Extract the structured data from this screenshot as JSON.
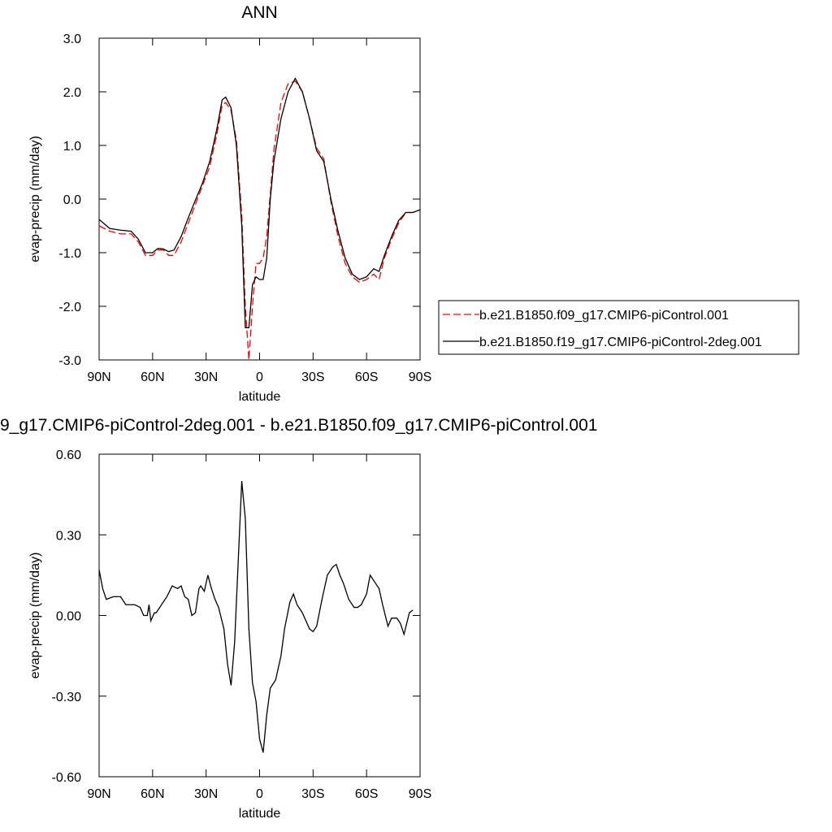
{
  "chart_data": [
    {
      "type": "line",
      "title": "ANN",
      "xlabel": "latitude",
      "ylabel": "evap-precip (mm/day)",
      "x": [
        90,
        84,
        78,
        72,
        68,
        64,
        60,
        57,
        54,
        51,
        48,
        44,
        40,
        36,
        32,
        28,
        24,
        21,
        19,
        16,
        13,
        10,
        8,
        6,
        4,
        2,
        0,
        -2,
        -4,
        -6,
        -8,
        -12,
        -16,
        -20,
        -24,
        -28,
        -32,
        -36,
        -40,
        -44,
        -48,
        -52,
        -56,
        -60,
        -64,
        -67,
        -70,
        -74,
        -78,
        -82,
        -86,
        -90
      ],
      "series": [
        {
          "name": "b.e21.B1850.f09_g17.CMIP6-piControl.001",
          "color": "#ff0000",
          "dashed": true,
          "values": [
            -0.5,
            -0.6,
            -0.65,
            -0.65,
            -0.8,
            -1.05,
            -1.05,
            -0.95,
            -0.95,
            -1.05,
            -1.05,
            -0.8,
            -0.45,
            -0.1,
            0.25,
            0.6,
            1.2,
            1.75,
            1.8,
            1.65,
            1.1,
            -0.3,
            -2.0,
            -3.0,
            -2.0,
            -1.2,
            -1.2,
            -1.1,
            -0.7,
            0.1,
            0.9,
            1.8,
            2.15,
            2.2,
            2.0,
            1.5,
            0.95,
            0.75,
            -0.05,
            -0.7,
            -1.2,
            -1.45,
            -1.55,
            -1.5,
            -1.4,
            -1.5,
            -1.1,
            -0.75,
            -0.45,
            -0.25,
            -0.25,
            -0.2
          ]
        },
        {
          "name": "b.e21.B1850.f19_g17.CMIP6-piControl-2deg.001",
          "color": "#000000",
          "dashed": false,
          "values": [
            -0.38,
            -0.55,
            -0.58,
            -0.6,
            -0.75,
            -1.0,
            -1.0,
            -0.92,
            -0.93,
            -0.98,
            -0.95,
            -0.7,
            -0.35,
            -0.02,
            0.3,
            0.7,
            1.3,
            1.85,
            1.9,
            1.7,
            1.0,
            -0.5,
            -2.4,
            -2.4,
            -1.6,
            -1.45,
            -1.5,
            -1.5,
            -1.1,
            0.0,
            0.7,
            1.5,
            2.0,
            2.25,
            2.0,
            1.5,
            0.9,
            0.7,
            0.0,
            -0.6,
            -1.1,
            -1.4,
            -1.5,
            -1.45,
            -1.3,
            -1.35,
            -1.05,
            -0.7,
            -0.4,
            -0.25,
            -0.25,
            -0.2
          ]
        }
      ],
      "xlim": [
        90,
        -90
      ],
      "xticks": [
        {
          "value": 90,
          "label": "90N"
        },
        {
          "value": 60,
          "label": "60N"
        },
        {
          "value": 30,
          "label": "30N"
        },
        0,
        {
          "value": -30,
          "label": "30S"
        },
        {
          "value": -60,
          "label": "60S"
        },
        {
          "value": -90,
          "label": "90S"
        }
      ],
      "ylim": [
        -3,
        3
      ],
      "yticks": [
        {
          "value": -3,
          "label": "-3.0"
        },
        {
          "value": -2,
          "label": "-2.0"
        },
        {
          "value": -1,
          "label": "-1.0"
        },
        {
          "value": 0,
          "label": "0.0"
        },
        {
          "value": 1,
          "label": "1.0"
        },
        {
          "value": 2,
          "label": "2.0"
        },
        {
          "value": 3,
          "label": "3.0"
        }
      ],
      "legend": "outside-right"
    },
    {
      "type": "line",
      "title": "9_g17.CMIP6-piControl-2deg.001 - b.e21.B1850.f09_g17.CMIP6-piControl.001",
      "xlabel": "latitude",
      "ylabel": "evap-precip (mm/day)",
      "x": [
        90,
        88,
        86,
        82,
        78,
        75,
        70,
        67,
        65,
        63,
        62,
        61,
        59,
        58,
        55,
        52,
        49,
        46,
        44,
        42,
        40,
        38,
        36,
        34,
        33,
        31,
        29,
        27,
        25,
        23,
        20,
        18,
        16,
        14,
        12,
        10,
        8,
        6,
        4,
        2,
        0,
        -2,
        -4,
        -6,
        -9,
        -12,
        -14,
        -17,
        -19,
        -21,
        -24,
        -28,
        -30,
        -32,
        -35,
        -38,
        -41,
        -43,
        -45,
        -47,
        -50,
        -53,
        -55,
        -57,
        -60,
        -62,
        -65,
        -67,
        -69,
        -72,
        -74,
        -77,
        -79,
        -81,
        -84,
        -86
      ],
      "color": "#000000",
      "values": [
        0.17,
        0.1,
        0.06,
        0.07,
        0.07,
        0.04,
        0.04,
        0.03,
        0.0,
        0.0,
        0.04,
        -0.02,
        0.01,
        0.01,
        0.04,
        0.07,
        0.11,
        0.1,
        0.11,
        0.07,
        0.06,
        0.0,
        0.01,
        0.1,
        0.11,
        0.09,
        0.15,
        0.1,
        0.06,
        0.03,
        -0.05,
        -0.18,
        -0.26,
        -0.1,
        0.2,
        0.5,
        0.36,
        -0.05,
        -0.25,
        -0.32,
        -0.46,
        -0.51,
        -0.37,
        -0.27,
        -0.24,
        -0.15,
        -0.05,
        0.05,
        0.08,
        0.04,
        0.01,
        -0.05,
        -0.06,
        -0.04,
        0.06,
        0.15,
        0.18,
        0.19,
        0.15,
        0.12,
        0.06,
        0.03,
        0.03,
        0.04,
        0.08,
        0.15,
        0.12,
        0.1,
        0.04,
        -0.04,
        -0.01,
        -0.01,
        -0.03,
        -0.07,
        0.01,
        0.02
      ],
      "xlim": [
        90,
        -90
      ],
      "xticks": [
        {
          "value": 90,
          "label": "90N"
        },
        {
          "value": 60,
          "label": "60N"
        },
        {
          "value": 30,
          "label": "30N"
        },
        0,
        {
          "value": -30,
          "label": "30S"
        },
        {
          "value": -60,
          "label": "60S"
        },
        {
          "value": -90,
          "label": "90S"
        }
      ],
      "ylim": [
        -0.6,
        0.6
      ],
      "yticks": [
        {
          "value": -0.6,
          "label": "-0.60"
        },
        {
          "value": -0.3,
          "label": "-0.30"
        },
        {
          "value": 0,
          "label": "0.00"
        },
        {
          "value": 0.3,
          "label": "0.30"
        },
        {
          "value": 0.6,
          "label": "0.60"
        }
      ]
    }
  ]
}
